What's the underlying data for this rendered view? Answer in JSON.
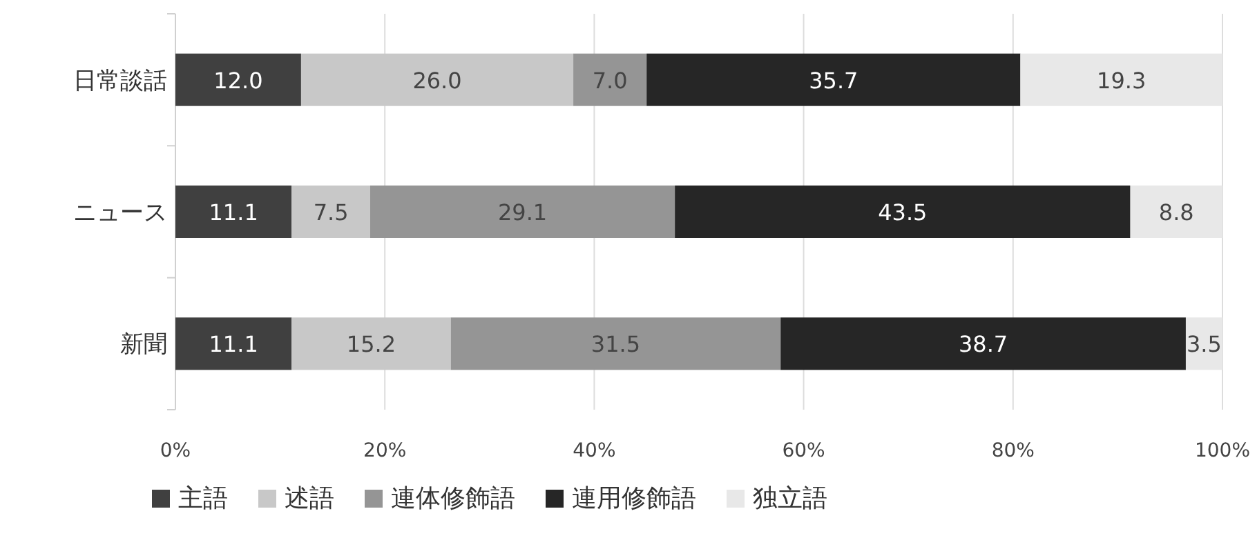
{
  "chart_data": {
    "type": "bar",
    "orientation": "horizontal",
    "stacked": true,
    "categories": [
      "日常談話",
      "ニュース",
      "新聞"
    ],
    "series": [
      {
        "name": "主語",
        "color": "#404040",
        "values": [
          12.0,
          11.1,
          11.1
        ],
        "value_labels": [
          "12.0",
          "11.1",
          "11.1"
        ]
      },
      {
        "name": "述語",
        "color": "#c8c8c8",
        "values": [
          26.0,
          7.5,
          15.2
        ],
        "value_labels": [
          "26.0",
          "7.5",
          "15.2"
        ]
      },
      {
        "name": "連体修飾語",
        "color": "#959595",
        "values": [
          7.0,
          29.1,
          31.5
        ],
        "value_labels": [
          "7.0",
          "29.1",
          "31.5"
        ]
      },
      {
        "name": "連用修飾語",
        "color": "#262626",
        "values": [
          35.7,
          43.5,
          38.7
        ],
        "value_labels": [
          "35.7",
          "43.5",
          "38.7"
        ]
      },
      {
        "name": "独立語",
        "color": "#e8e8e8",
        "values": [
          19.3,
          8.8,
          3.5
        ],
        "value_labels": [
          "19.3",
          "8.8",
          "3.5"
        ]
      }
    ],
    "xlim": [
      0,
      100
    ],
    "xticks": [
      {
        "value": 0,
        "label": "0%"
      },
      {
        "value": 20,
        "label": "20%"
      },
      {
        "value": 40,
        "label": "40%"
      },
      {
        "value": 60,
        "label": "60%"
      },
      {
        "value": 80,
        "label": "80%"
      },
      {
        "value": 100,
        "label": "100%"
      }
    ],
    "grid": "x",
    "legend": "bottom"
  }
}
